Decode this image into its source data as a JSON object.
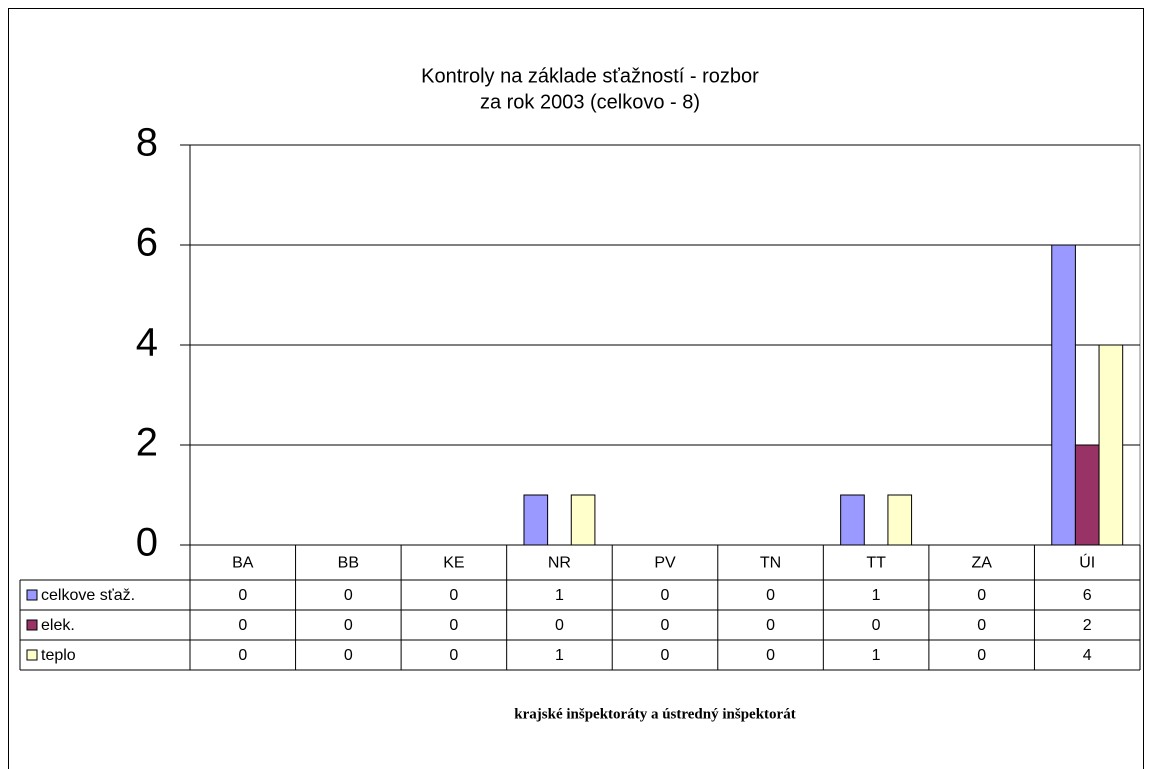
{
  "chart_data": {
    "type": "bar",
    "title": "Kontroly na základe sťažností - rozbor",
    "subtitle": "za rok 2003 (celkovo - 8)",
    "x_label": "krajské inšpektoráty a ústredný inšpektorát",
    "categories": [
      "BA",
      "BB",
      "KE",
      "NR",
      "PV",
      "TN",
      "TT",
      "ZA",
      "ÚI"
    ],
    "series": [
      {
        "name": "celkove sťaž.",
        "color": "#9999ff",
        "values": [
          0,
          0,
          0,
          1,
          0,
          0,
          1,
          0,
          6
        ]
      },
      {
        "name": "elek.",
        "color": "#993366",
        "values": [
          0,
          0,
          0,
          0,
          0,
          0,
          0,
          0,
          2
        ]
      },
      {
        "name": "teplo",
        "color": "#ffffcc",
        "values": [
          0,
          0,
          0,
          1,
          0,
          0,
          1,
          0,
          4
        ]
      }
    ],
    "ylim": [
      0,
      8
    ],
    "yticks": [
      0,
      2,
      4,
      6,
      8
    ],
    "grid": true,
    "legend": "table"
  }
}
